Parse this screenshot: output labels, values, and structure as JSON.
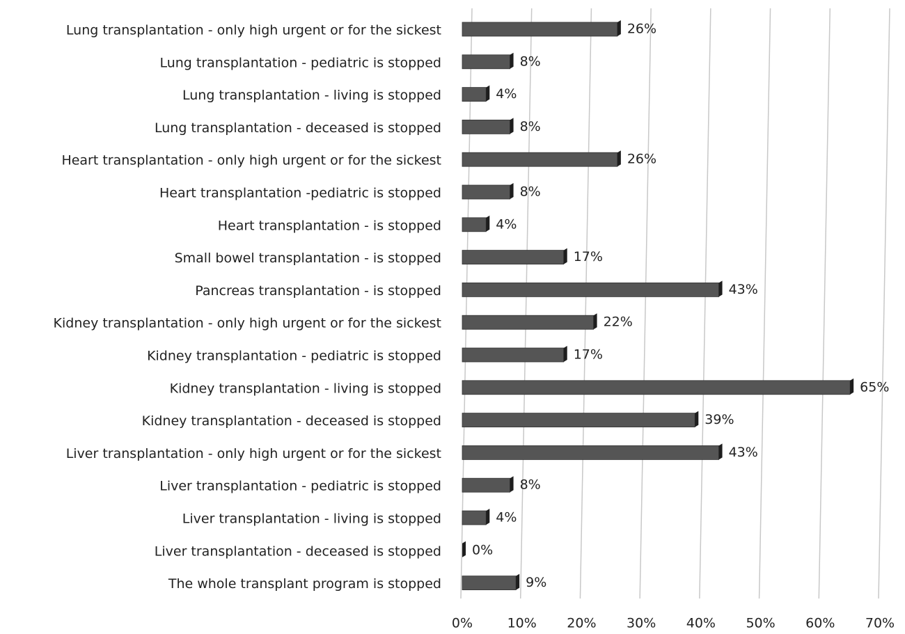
{
  "chart_data": {
    "type": "bar",
    "orientation": "horizontal",
    "color": "#555555",
    "categories": [
      "Lung transplantation - only high urgent or for the sickest",
      "Lung transplantation - pediatric is stopped",
      "Lung transplantation - living is stopped",
      "Lung transplantation - deceased is stopped",
      "Heart transplantation - only high urgent or for the sickest",
      "Heart transplantation -pediatric is stopped",
      "Heart transplantation - is stopped",
      "Small bowel transplantation - is stopped",
      "Pancreas transplantation - is stopped",
      "Kidney transplantation - only high urgent or for the sickest",
      "Kidney transplantation - pediatric is stopped",
      "Kidney transplantation - living is stopped",
      "Kidney transplantation - deceased is stopped",
      "Liver transplantation - only high urgent or for the sickest",
      "Liver transplantation - pediatric is stopped",
      "Liver transplantation - living is stopped",
      "Liver transplantation - deceased is stopped",
      "The whole transplant program is stopped"
    ],
    "values": [
      26,
      8,
      4,
      8,
      26,
      8,
      4,
      17,
      43,
      22,
      17,
      65,
      39,
      43,
      8,
      4,
      0,
      9
    ],
    "value_labels": [
      "26%",
      "8%",
      "4%",
      "8%",
      "26%",
      "8%",
      "4%",
      "17%",
      "43%",
      "22%",
      "17%",
      "65%",
      "39%",
      "43%",
      "8%",
      "4%",
      "0%",
      "9%"
    ],
    "xlim": [
      0,
      70
    ],
    "xticks": [
      {
        "value": 0,
        "label": "0%"
      },
      {
        "value": 10,
        "label": "10%"
      },
      {
        "value": 20,
        "label": "20%"
      },
      {
        "value": 30,
        "label": "30%"
      },
      {
        "value": 40,
        "label": "40%"
      },
      {
        "value": 50,
        "label": "50%"
      },
      {
        "value": 60,
        "label": "60%"
      },
      {
        "value": 70,
        "label": "70%"
      }
    ],
    "grid": true
  }
}
